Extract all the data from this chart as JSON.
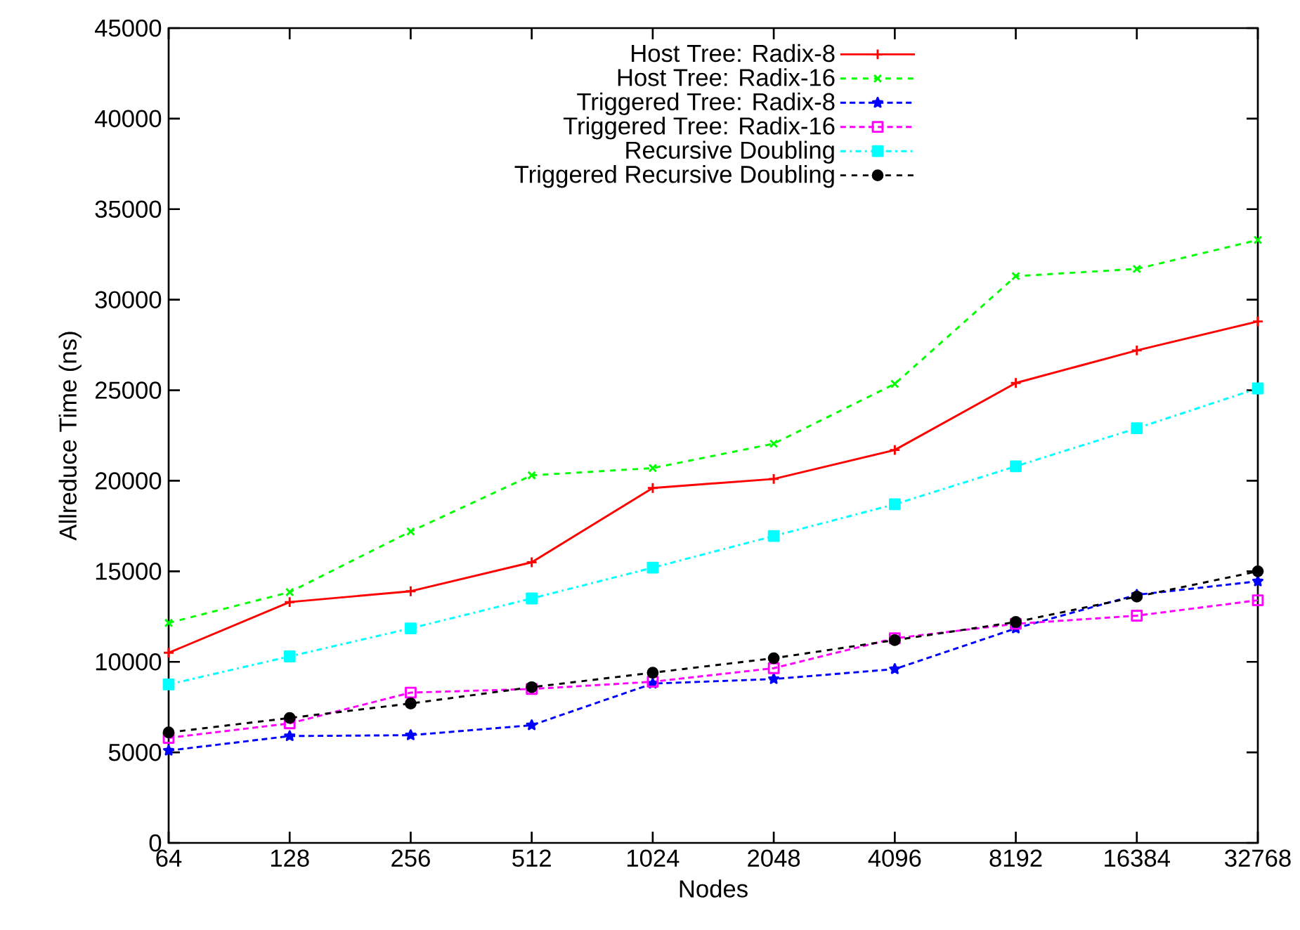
{
  "chart_data": {
    "type": "line",
    "xlabel": "Nodes",
    "ylabel": "Allreduce Time (ns)",
    "categories": [
      "64",
      "128",
      "256",
      "512",
      "1024",
      "2048",
      "4096",
      "8192",
      "16384",
      "32768"
    ],
    "ylim": [
      0,
      45000
    ],
    "yticks": [
      0,
      5000,
      10000,
      15000,
      20000,
      25000,
      30000,
      35000,
      40000,
      45000
    ],
    "grid": false,
    "legend": "top",
    "series": [
      {
        "name": "Host Tree: Radix-8",
        "color": "#ff0000",
        "marker": "plus",
        "line_style": "solid",
        "values": [
          10500,
          13300,
          13900,
          15500,
          19600,
          20100,
          21700,
          25400,
          27200,
          28800
        ]
      },
      {
        "name": "Host Tree: Radix-16",
        "color": "#00ff00",
        "marker": "cross",
        "line_style": "dashed",
        "values": [
          12150,
          13850,
          17200,
          20300,
          20700,
          22050,
          25350,
          31300,
          31700,
          33300
        ]
      },
      {
        "name": "Triggered Tree: Radix-8",
        "color": "#0000ff",
        "marker": "star",
        "line_style": "dotted",
        "values": [
          5100,
          5900,
          5950,
          6500,
          8800,
          9050,
          9600,
          11850,
          13700,
          14450
        ]
      },
      {
        "name": "Triggered Tree: Radix-16",
        "color": "#ff00ff",
        "marker": "square_open",
        "line_style": "dotted",
        "values": [
          5800,
          6600,
          8300,
          8500,
          8900,
          9650,
          11300,
          12100,
          12550,
          13400
        ]
      },
      {
        "name": "Recursive Doubling",
        "color": "#00ffff",
        "marker": "square",
        "line_style": "dashdot",
        "values": [
          8750,
          10300,
          11850,
          13500,
          15200,
          16950,
          18700,
          20800,
          22900,
          25100
        ]
      },
      {
        "name": "Triggered Recursive Doubling",
        "color": "#000000",
        "marker": "circle",
        "line_style": "dashed",
        "values": [
          6100,
          6900,
          7700,
          8600,
          9400,
          10200,
          11200,
          12200,
          13600,
          15000
        ]
      }
    ]
  }
}
